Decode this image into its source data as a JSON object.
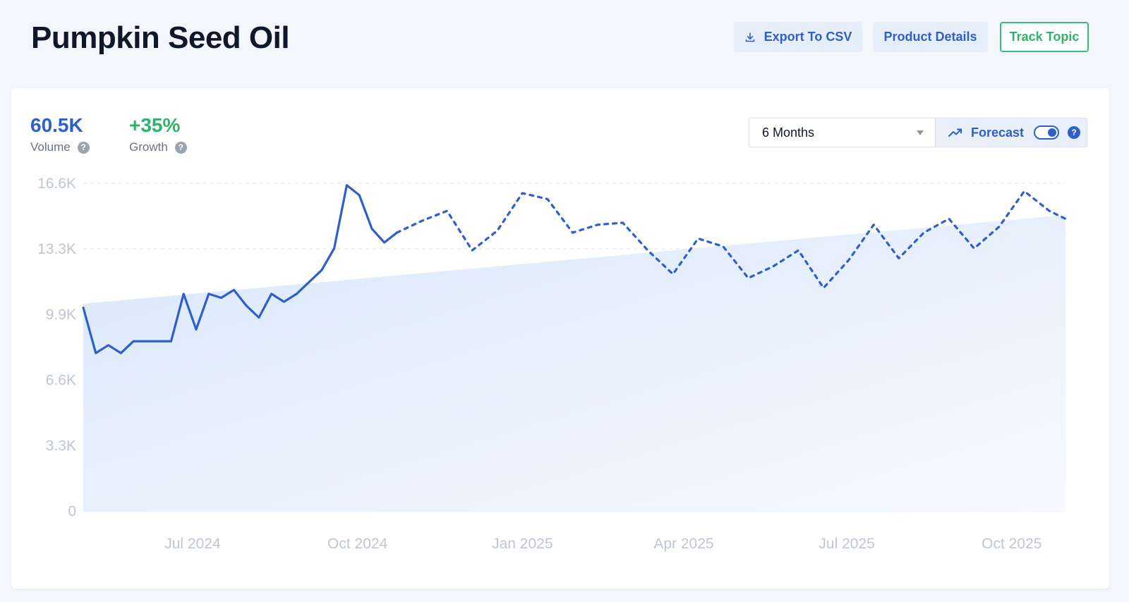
{
  "header": {
    "title": "Pumpkin Seed Oil",
    "export_label": "Export To CSV",
    "product_label": "Product Details",
    "track_label": "Track Topic"
  },
  "metrics": {
    "volume_value": "60.5K",
    "volume_label": "Volume",
    "growth_value": "+35%",
    "growth_label": "Growth"
  },
  "controls": {
    "range_selected": "6 Months",
    "forecast_label": "Forecast",
    "forecast_enabled": true
  },
  "colors": {
    "accent": "#2f5fc9",
    "growth": "#2fb36b",
    "area_fill": "#dbe8fb"
  },
  "chart_data": {
    "type": "line",
    "y_ticks": [
      "0",
      "3.3K",
      "6.6K",
      "9.9K",
      "13.3K",
      "16.6K"
    ],
    "ylim": [
      0,
      16600
    ],
    "x_ticks": [
      {
        "label": "Jul 2024",
        "date": "2024-07-01"
      },
      {
        "label": "Oct 2024",
        "date": "2024-10-01"
      },
      {
        "label": "Jan 2025",
        "date": "2025-01-01"
      },
      {
        "label": "Apr 2025",
        "date": "2025-04-01"
      },
      {
        "label": "Jul 2025",
        "date": "2025-07-01"
      },
      {
        "label": "Oct 2025",
        "date": "2025-10-01"
      }
    ],
    "xlim": [
      "2024-05-01",
      "2025-10-31"
    ],
    "trend_area": {
      "start": {
        "date": "2024-05-01",
        "value": 10500
      },
      "end": {
        "date": "2025-10-31",
        "value": 15000
      }
    },
    "series": [
      {
        "style": "solid",
        "points": [
          [
            "2024-05-01",
            10300
          ],
          [
            "2024-05-08",
            8000
          ],
          [
            "2024-05-15",
            8400
          ],
          [
            "2024-05-22",
            8000
          ],
          [
            "2024-05-29",
            8600
          ],
          [
            "2024-06-05",
            8600
          ],
          [
            "2024-06-12",
            8600
          ],
          [
            "2024-06-19",
            8600
          ],
          [
            "2024-06-26",
            11000
          ],
          [
            "2024-07-03",
            9200
          ],
          [
            "2024-07-10",
            11000
          ],
          [
            "2024-07-17",
            10800
          ],
          [
            "2024-07-24",
            11200
          ],
          [
            "2024-07-31",
            10400
          ],
          [
            "2024-08-07",
            9800
          ],
          [
            "2024-08-14",
            11000
          ],
          [
            "2024-08-21",
            10600
          ],
          [
            "2024-08-28",
            11000
          ],
          [
            "2024-09-04",
            11600
          ],
          [
            "2024-09-11",
            12200
          ],
          [
            "2024-09-18",
            13300
          ],
          [
            "2024-09-25",
            16500
          ],
          [
            "2024-10-02",
            16000
          ],
          [
            "2024-10-09",
            14300
          ],
          [
            "2024-10-16",
            13600
          ],
          [
            "2024-10-23",
            14100
          ]
        ]
      },
      {
        "style": "dashed",
        "points": [
          [
            "2024-10-23",
            14100
          ],
          [
            "2024-11-06",
            14700
          ],
          [
            "2024-11-20",
            15200
          ],
          [
            "2024-12-04",
            13200
          ],
          [
            "2024-12-18",
            14200
          ],
          [
            "2025-01-01",
            16100
          ],
          [
            "2025-01-15",
            15800
          ],
          [
            "2025-01-29",
            14100
          ],
          [
            "2025-02-12",
            14500
          ],
          [
            "2025-02-26",
            14600
          ],
          [
            "2025-03-12",
            13200
          ],
          [
            "2025-03-26",
            12000
          ],
          [
            "2025-04-09",
            13800
          ],
          [
            "2025-04-23",
            13400
          ],
          [
            "2025-05-07",
            11800
          ],
          [
            "2025-05-21",
            12400
          ],
          [
            "2025-06-04",
            13200
          ],
          [
            "2025-06-18",
            11300
          ],
          [
            "2025-07-02",
            12700
          ],
          [
            "2025-07-16",
            14500
          ],
          [
            "2025-07-30",
            12800
          ],
          [
            "2025-08-13",
            14100
          ],
          [
            "2025-08-27",
            14800
          ],
          [
            "2025-09-10",
            13300
          ],
          [
            "2025-09-24",
            14400
          ],
          [
            "2025-10-08",
            16200
          ],
          [
            "2025-10-22",
            15200
          ],
          [
            "2025-10-31",
            14800
          ]
        ]
      }
    ]
  }
}
